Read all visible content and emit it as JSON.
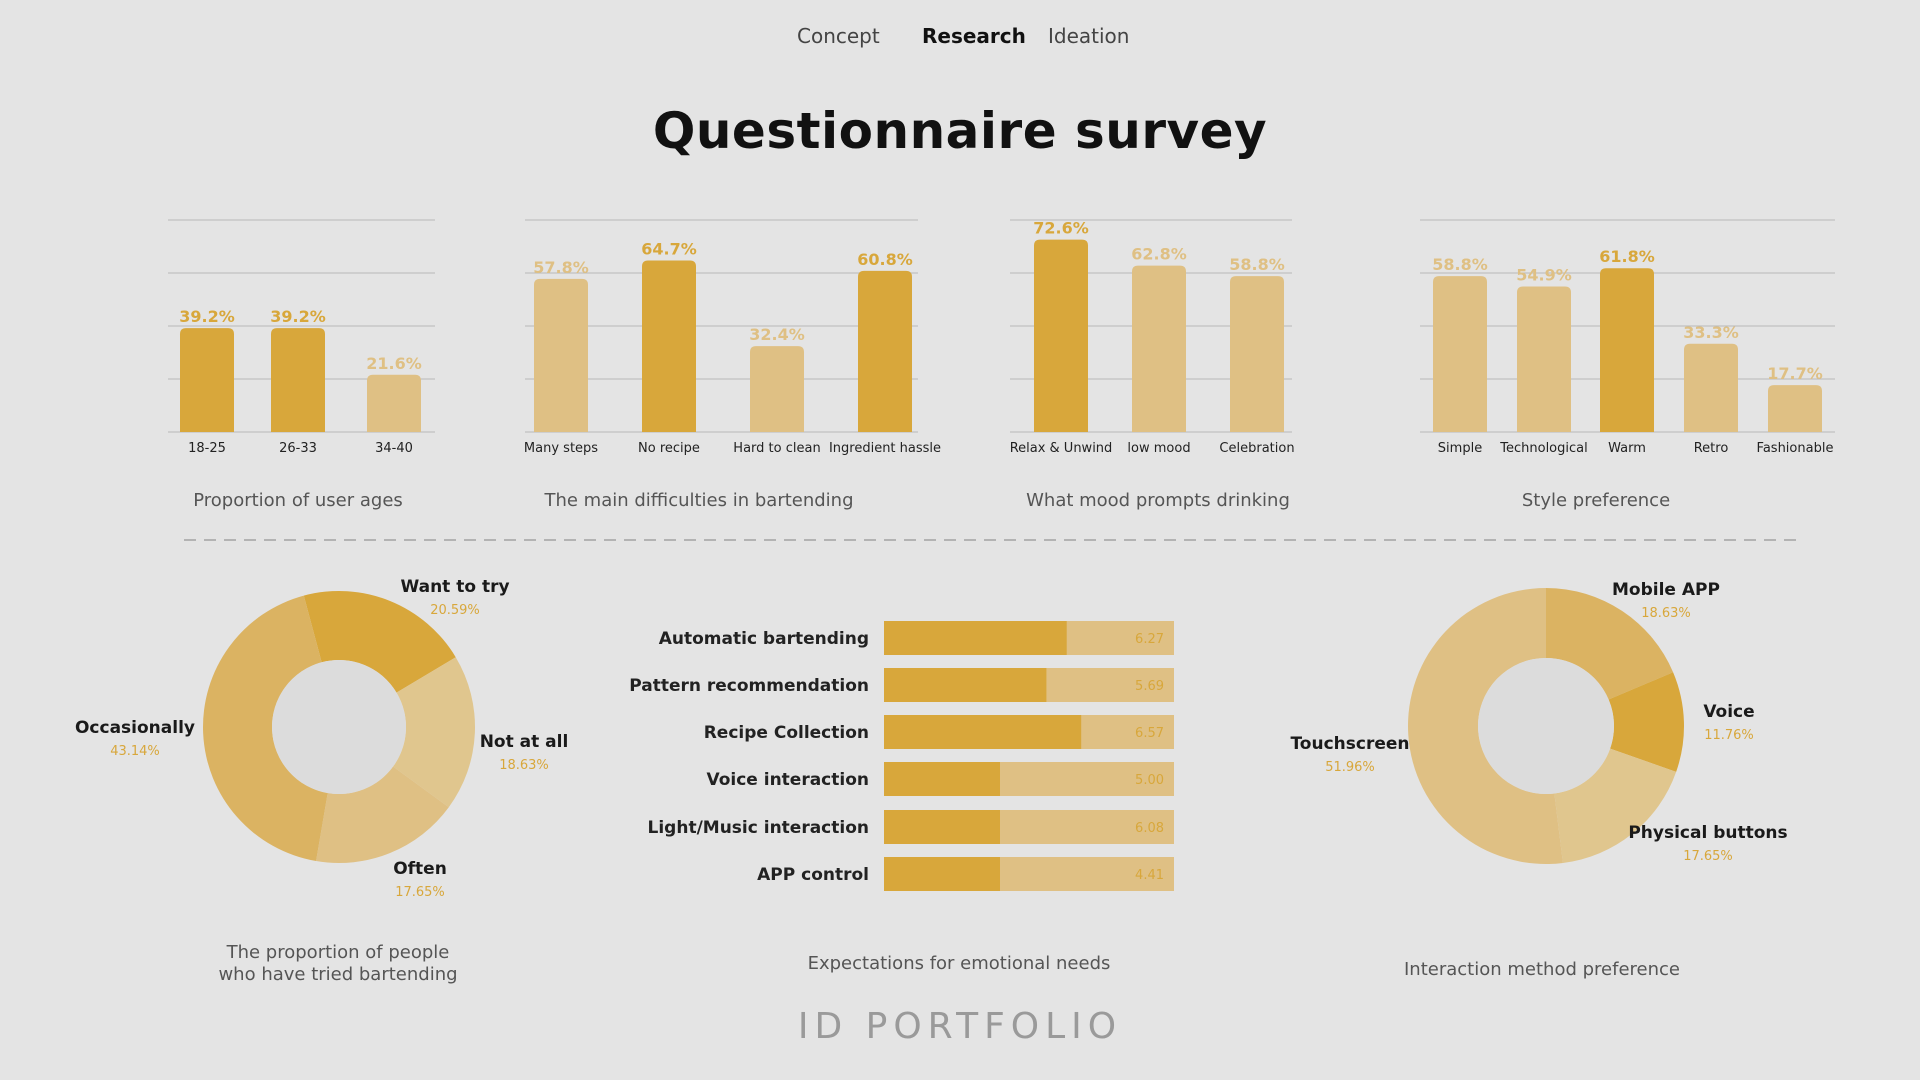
{
  "nav": {
    "items": [
      "Concept",
      "Research",
      "Ideation"
    ],
    "active": "Research"
  },
  "page": {
    "title": "Questionnaire survey",
    "footer": "ID PORTFOLIO"
  },
  "colors": {
    "dark": "#d8a73b",
    "light": "#dfc084",
    "mid": "#dbb362",
    "pale": "#e0c68e",
    "grid": "#b9b9b9",
    "divider": "#b3b3b3",
    "hole": "#dcdcdc",
    "label": "#1a1a1a",
    "value": "#d8a73b"
  },
  "chart_data": [
    {
      "type": "bar",
      "title": "Proportion of user ages",
      "categories": [
        "18-25",
        "26-33",
        "34-40"
      ],
      "values": [
        39.2,
        39.2,
        21.6
      ],
      "labels": [
        "39.2%",
        "39.2%",
        "21.6%"
      ],
      "highlight": [
        true,
        true,
        false
      ],
      "ylim": [
        0,
        80
      ]
    },
    {
      "type": "bar",
      "title": "The main difficulties in bartending",
      "categories": [
        "Many steps",
        "No recipe",
        "Hard to clean",
        "Ingredient hassle"
      ],
      "values": [
        57.8,
        64.7,
        32.4,
        60.8
      ],
      "labels": [
        "57.8%",
        "64.7%",
        "32.4%",
        "60.8%"
      ],
      "highlight": [
        false,
        true,
        false,
        true
      ],
      "ylim": [
        0,
        80
      ]
    },
    {
      "type": "bar",
      "title": "What mood prompts drinking",
      "categories": [
        "Relax & Unwind",
        "low mood",
        "Celebration"
      ],
      "values": [
        72.6,
        62.8,
        58.8
      ],
      "labels": [
        "72.6%",
        "62.8%",
        "58.8%"
      ],
      "highlight": [
        true,
        false,
        false
      ],
      "ylim": [
        0,
        80
      ]
    },
    {
      "type": "bar",
      "title": "Style preference",
      "categories": [
        "Simple",
        "Technological",
        "Warm",
        "Retro",
        "Fashionable"
      ],
      "values": [
        58.8,
        54.9,
        61.8,
        33.3,
        17.7
      ],
      "labels": [
        "58.8%",
        "54.9%",
        "61.8%",
        "33.3%",
        "17.7%"
      ],
      "highlight": [
        false,
        false,
        true,
        false,
        false
      ],
      "ylim": [
        0,
        80
      ]
    },
    {
      "type": "pie",
      "title": "The proportion of people who have tried bartending",
      "title_lines": [
        "The proportion of people",
        "who have tried bartending"
      ],
      "slices": [
        {
          "label": "Want to try",
          "value": 20.59,
          "text": "20.59%",
          "shade": "dark"
        },
        {
          "label": "Not at all",
          "value": 18.63,
          "text": "18.63%",
          "shade": "pale"
        },
        {
          "label": "Often",
          "value": 17.65,
          "text": "17.65%",
          "shade": "light"
        },
        {
          "label": "Occasionally",
          "value": 43.14,
          "text": "43.14%",
          "shade": "mid"
        }
      ]
    },
    {
      "type": "bar",
      "orientation": "horizontal",
      "title": "Expectations for emotional needs",
      "categories": [
        "Automatic bartending",
        "Pattern recommendation",
        "Recipe Collection",
        "Voice interaction",
        "Light/Music interaction",
        "APP control"
      ],
      "values": [
        6.27,
        5.69,
        6.57,
        5.0,
        6.08,
        4.41
      ],
      "labels": [
        "6.27",
        "5.69",
        "6.57",
        "5.00",
        "6.08",
        "4.41"
      ],
      "fill_fraction": [
        0.63,
        0.56,
        0.68,
        0.4,
        0.4,
        0.4
      ]
    },
    {
      "type": "pie",
      "title": "Interaction method preference",
      "slices": [
        {
          "label": "Mobile APP",
          "value": 18.63,
          "text": "18.63%",
          "shade": "mid"
        },
        {
          "label": "Voice",
          "value": 11.76,
          "text": "11.76%",
          "shade": "dark"
        },
        {
          "label": "Physical buttons",
          "value": 17.65,
          "text": "17.65%",
          "shade": "pale"
        },
        {
          "label": "Touchscreen",
          "value": 51.96,
          "text": "51.96%",
          "shade": "light"
        }
      ]
    }
  ]
}
